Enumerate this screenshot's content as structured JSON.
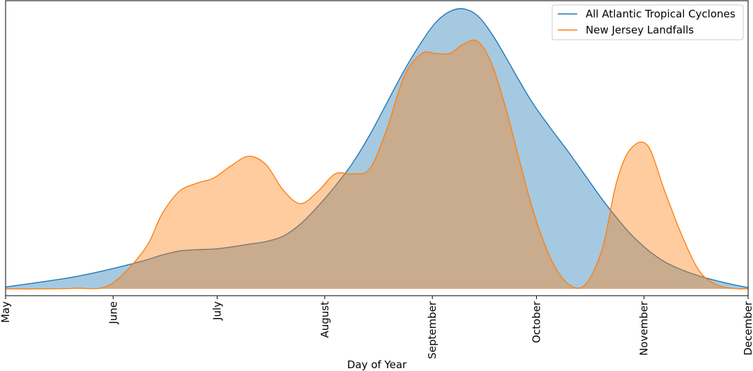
{
  "chart_data": {
    "type": "area",
    "title": "",
    "xlabel": "Day of Year",
    "ylabel": "",
    "xlim": [
      121,
      335
    ],
    "ylim": [
      -0.0005,
      0.0213
    ],
    "grid": false,
    "legend_position": "top-right",
    "x_ticks": [
      {
        "value": 121,
        "label": "May"
      },
      {
        "value": 152,
        "label": "June"
      },
      {
        "value": 182,
        "label": "July"
      },
      {
        "value": 213,
        "label": "August"
      },
      {
        "value": 244,
        "label": "September"
      },
      {
        "value": 274,
        "label": "October"
      },
      {
        "value": 305,
        "label": "November"
      },
      {
        "value": 335,
        "label": "December"
      }
    ],
    "x": [
      121,
      131,
      141,
      151,
      161,
      166,
      171,
      176,
      181,
      186,
      191,
      196,
      201,
      206,
      211,
      216,
      221,
      226,
      231,
      236,
      241,
      245,
      249,
      253,
      257,
      261,
      265,
      269,
      273,
      278,
      283,
      288,
      293,
      297,
      301,
      306,
      311,
      316,
      321,
      326,
      331,
      335
    ],
    "series": [
      {
        "name": "All Atlantic Tropical Cyclones",
        "color": "#1f77b4",
        "fill": "#1f77b4",
        "fill_opacity": 0.4,
        "values": [
          0.00014,
          0.0005,
          0.0009,
          0.00145,
          0.0021,
          0.0025,
          0.0028,
          0.0029,
          0.00295,
          0.0031,
          0.0033,
          0.0035,
          0.0039,
          0.0048,
          0.0061,
          0.0076,
          0.0093,
          0.0114,
          0.0138,
          0.0162,
          0.0183,
          0.0197,
          0.0205,
          0.0207,
          0.0202,
          0.0189,
          0.0172,
          0.0154,
          0.0137,
          0.0119,
          0.0102,
          0.0084,
          0.0066,
          0.0053,
          0.0041,
          0.0029,
          0.002,
          0.0014,
          0.00095,
          0.0006,
          0.0003,
          0.0001
        ]
      },
      {
        "name": "New Jersey Landfalls",
        "color": "#ff7f0e",
        "fill": "#ff7f0e",
        "fill_opacity": 0.4,
        "values": [
          0.0,
          0.0,
          5e-05,
          0.0003,
          0.0029,
          0.0055,
          0.0072,
          0.0078,
          0.0082,
          0.0091,
          0.0098,
          0.0092,
          0.0073,
          0.0063,
          0.0072,
          0.0085,
          0.0085,
          0.0089,
          0.0119,
          0.0158,
          0.0174,
          0.0174,
          0.0174,
          0.0181,
          0.0183,
          0.0167,
          0.0135,
          0.0096,
          0.0058,
          0.0023,
          0.0004,
          0.0003,
          0.003,
          0.0078,
          0.0103,
          0.0106,
          0.0072,
          0.0039,
          0.0013,
          0.0003,
          3e-05,
          0.0
        ]
      }
    ]
  }
}
